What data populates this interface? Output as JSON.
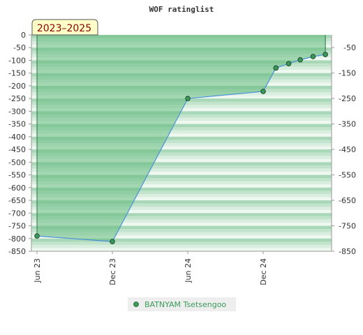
{
  "chart_data": {
    "type": "line",
    "title": "WOF ratinglist",
    "badge": "2023–2025",
    "x_ticks": [
      "Jun 23",
      "Dec 23",
      "Jun 24",
      "Dec 24"
    ],
    "y_left_ticks": [
      "0",
      "-50",
      "-100",
      "-150",
      "-200",
      "-250",
      "-300",
      "-350",
      "-400",
      "-450",
      "-500",
      "-550",
      "-600",
      "-650",
      "-700",
      "-750",
      "-800",
      "-850"
    ],
    "y_right_ticks": [
      "-50",
      "-150",
      "-250",
      "-350",
      "-450",
      "-550",
      "-650",
      "-750",
      "-850"
    ],
    "ylim": [
      -850,
      0
    ],
    "xlim": [
      "2023-06-01",
      "2025-03-20"
    ],
    "grid": true,
    "legend_position": "bottom",
    "series": [
      {
        "name": "BATNYAM Tsetsengoo",
        "color": "#3a9a5a",
        "x": [
          "2023-06-01",
          "2023-12-01",
          "2024-06-01",
          "2024-12-01",
          "2025-01-01",
          "2025-02-01",
          "2025-03-01",
          "2025-04-01",
          "2025-05-01"
        ],
        "y": [
          -790,
          -812,
          -250,
          -222,
          -130,
          -113,
          -98,
          -85,
          -77
        ]
      }
    ]
  }
}
